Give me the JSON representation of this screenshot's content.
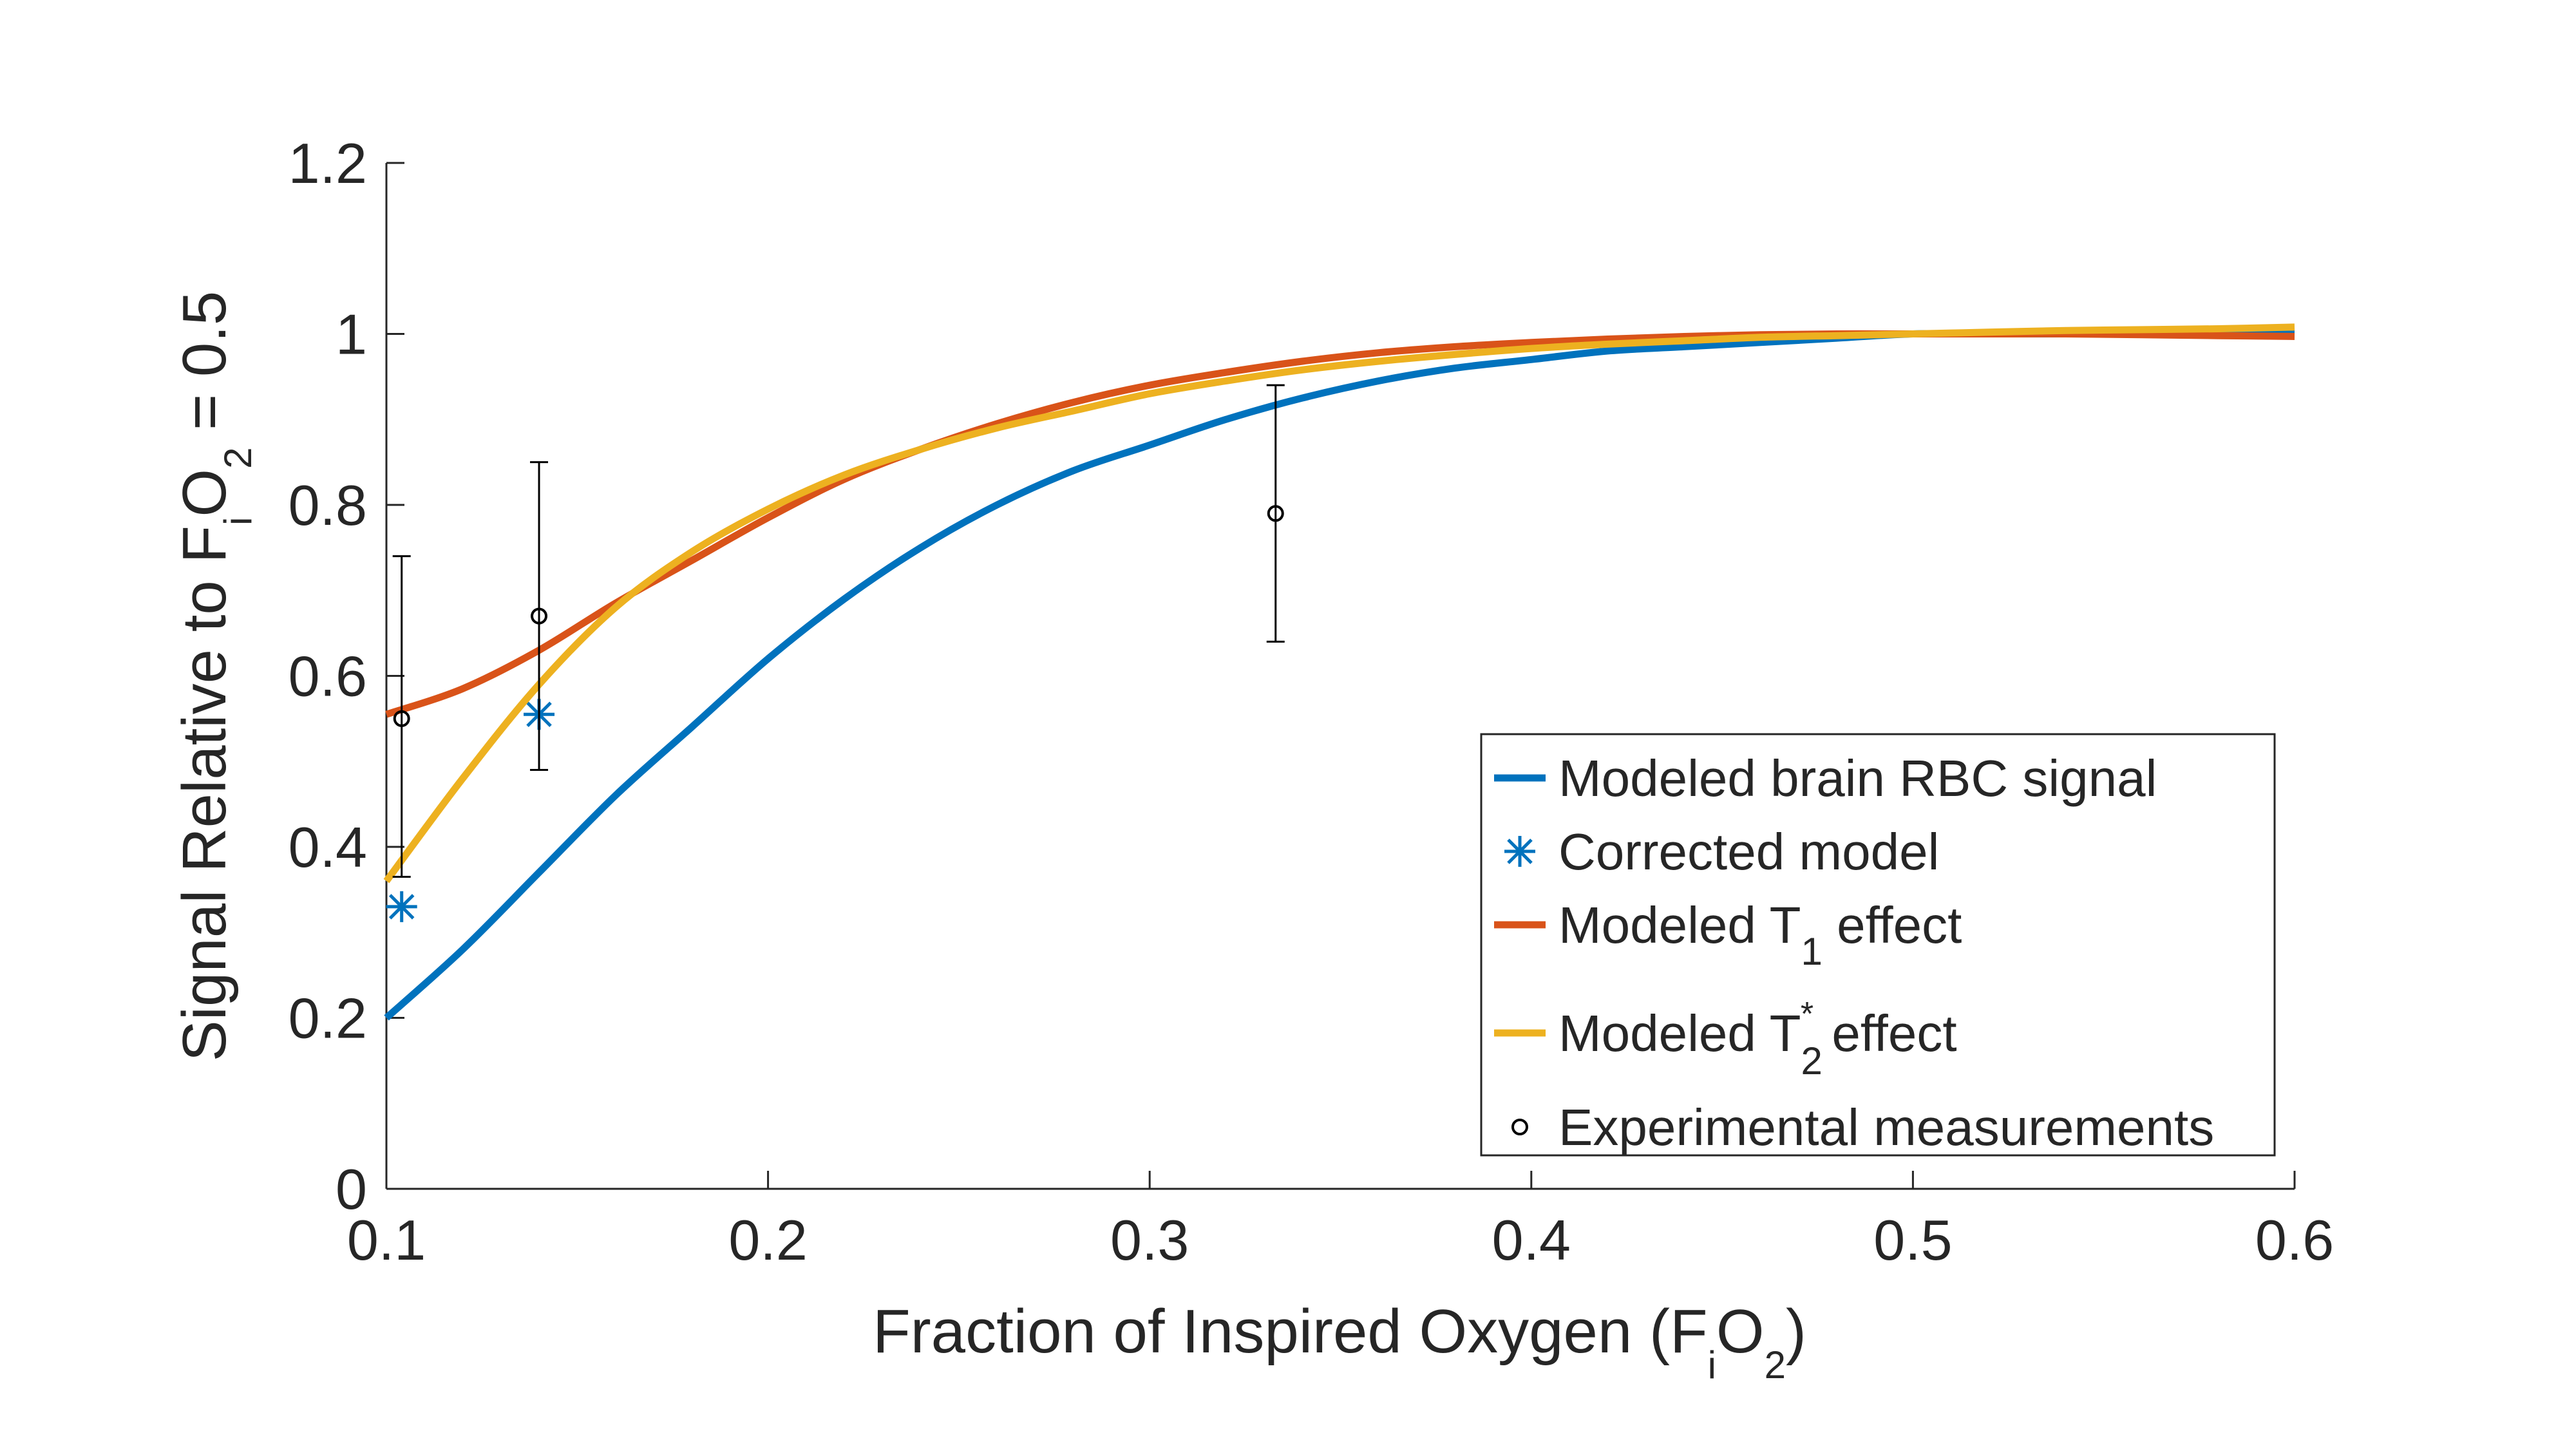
{
  "chart_data": {
    "type": "line",
    "title": "",
    "xlabel": "Fraction of Inspired Oxygen (F",
    "xlabel_sub": "i",
    "xlabel_mid": "O",
    "xlabel_sub2": "2",
    "xlabel_end": ")",
    "ylabel": "Signal Relative to F",
    "ylabel_sub": "i",
    "ylabel_mid": "O",
    "ylabel_sub2": "2",
    "ylabel_end": " = 0.5",
    "xlim": [
      0.1,
      0.6
    ],
    "ylim": [
      0,
      1.2
    ],
    "xticks": [
      0.1,
      0.2,
      0.3,
      0.4,
      0.5,
      0.6
    ],
    "xtick_labels": [
      "0.1",
      "0.2",
      "0.3",
      "0.4",
      "0.5",
      "0.6"
    ],
    "yticks": [
      0,
      0.2,
      0.4,
      0.6,
      0.8,
      1,
      1.2
    ],
    "ytick_labels": [
      "0",
      "0.2",
      "0.4",
      "0.6",
      "0.8",
      "1",
      "1.2"
    ],
    "grid": false,
    "legend_position": "bottom-right",
    "series": [
      {
        "name": "Modeled brain RBC signal",
        "kind": "line",
        "color": "#0072BD",
        "x": [
          0.1,
          0.12,
          0.14,
          0.16,
          0.18,
          0.2,
          0.22,
          0.24,
          0.26,
          0.28,
          0.3,
          0.32,
          0.34,
          0.36,
          0.38,
          0.4,
          0.42,
          0.44,
          0.46,
          0.48,
          0.5,
          0.52,
          0.54,
          0.56,
          0.58,
          0.6
        ],
        "y": [
          0.2,
          0.28,
          0.37,
          0.46,
          0.54,
          0.62,
          0.69,
          0.75,
          0.8,
          0.84,
          0.87,
          0.9,
          0.925,
          0.945,
          0.96,
          0.97,
          0.98,
          0.985,
          0.99,
          0.995,
          1.0,
          1.0,
          1.0,
          1.0,
          1.0,
          1.0
        ]
      },
      {
        "name": "Corrected model",
        "kind": "marker",
        "marker": "asterisk",
        "color": "#0072BD",
        "x": [
          0.104,
          0.14
        ],
        "y": [
          0.33,
          0.555
        ]
      },
      {
        "name": "Modeled T",
        "name_sub": "1",
        "name_end": " effect",
        "kind": "line",
        "color": "#D95319",
        "x": [
          0.1,
          0.12,
          0.14,
          0.16,
          0.18,
          0.2,
          0.22,
          0.24,
          0.26,
          0.28,
          0.3,
          0.32,
          0.34,
          0.36,
          0.38,
          0.4,
          0.42,
          0.44,
          0.46,
          0.48,
          0.5,
          0.52,
          0.54,
          0.56,
          0.58,
          0.6
        ],
        "y": [
          0.555,
          0.585,
          0.63,
          0.685,
          0.735,
          0.785,
          0.83,
          0.865,
          0.895,
          0.92,
          0.94,
          0.955,
          0.968,
          0.978,
          0.985,
          0.99,
          0.994,
          0.997,
          0.999,
          1.0,
          1.0,
          1.0,
          1.0,
          0.999,
          0.998,
          0.997
        ]
      },
      {
        "name": "Modeled T",
        "name_sub": "2",
        "name_sup": "*",
        "name_end": " effect",
        "kind": "line",
        "color": "#EDB120",
        "x": [
          0.1,
          0.12,
          0.14,
          0.16,
          0.18,
          0.2,
          0.22,
          0.24,
          0.26,
          0.28,
          0.3,
          0.32,
          0.34,
          0.36,
          0.38,
          0.4,
          0.42,
          0.44,
          0.46,
          0.48,
          0.5,
          0.52,
          0.54,
          0.56,
          0.58,
          0.6
        ],
        "y": [
          0.36,
          0.48,
          0.59,
          0.68,
          0.745,
          0.795,
          0.835,
          0.865,
          0.89,
          0.91,
          0.93,
          0.945,
          0.958,
          0.968,
          0.976,
          0.983,
          0.988,
          0.992,
          0.996,
          0.998,
          1.0,
          1.002,
          1.004,
          1.005,
          1.006,
          1.008
        ]
      },
      {
        "name": "Experimental measurements",
        "kind": "errorbar",
        "marker": "circle",
        "color": "#000000",
        "x": [
          0.104,
          0.14,
          0.333
        ],
        "y": [
          0.55,
          0.67,
          0.79
        ],
        "lower": [
          0.365,
          0.49,
          0.64
        ],
        "upper": [
          0.74,
          0.85,
          0.94
        ]
      }
    ]
  }
}
